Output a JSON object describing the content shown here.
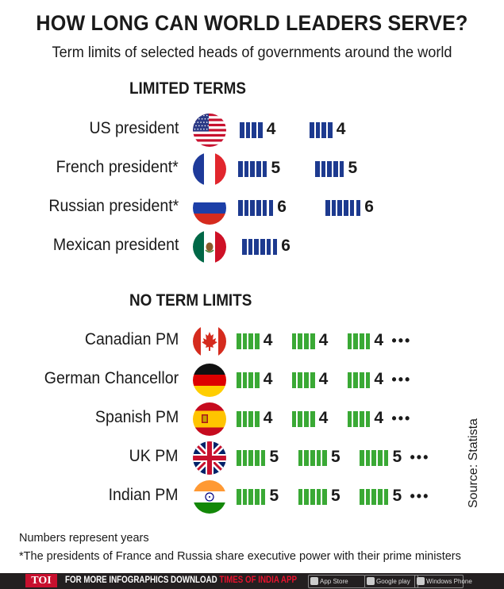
{
  "chart_data": {
    "type": "bar",
    "title": "HOW LONG CAN WORLD LEADERS SERVE?",
    "subtitle": "Term limits of selected heads of governments around the world",
    "groups": [
      {
        "name": "LIMITED TERMS",
        "color": "#1d3a8f",
        "rows": [
          {
            "label": "US president",
            "flag": "usa",
            "terms": [
              4,
              4
            ],
            "continues": false
          },
          {
            "label": "French president*",
            "flag": "france",
            "terms": [
              5,
              5
            ],
            "continues": false
          },
          {
            "label": "Russian president*",
            "flag": "russia",
            "terms": [
              6,
              6
            ],
            "continues": false
          },
          {
            "label": "Mexican president",
            "flag": "mexico",
            "terms": [
              6
            ],
            "continues": false
          }
        ]
      },
      {
        "name": "NO TERM LIMITS",
        "color": "#3aa935",
        "rows": [
          {
            "label": "Canadian PM",
            "flag": "canada",
            "terms": [
              4,
              4,
              4
            ],
            "continues": true
          },
          {
            "label": "German Chancellor",
            "flag": "germany",
            "terms": [
              4,
              4,
              4
            ],
            "continues": true
          },
          {
            "label": "Spanish PM",
            "flag": "spain",
            "terms": [
              4,
              4,
              4
            ],
            "continues": true
          },
          {
            "label": "UK PM",
            "flag": "uk",
            "terms": [
              5,
              5,
              5
            ],
            "continues": true
          },
          {
            "label": "Indian PM",
            "flag": "india",
            "terms": [
              5,
              5,
              5
            ],
            "continues": true
          }
        ]
      }
    ],
    "continuation_marker": "•••",
    "source": "Source: Statista"
  },
  "footnotes": [
    "Numbers represent years",
    "*The presidents of France and Russia share executive power with their prime ministers"
  ],
  "footer": {
    "logo": "TOI",
    "cta_prefix": "FOR MORE  INFOGRAPHICS DOWNLOAD ",
    "cta_app": "TIMES OF INDIA APP",
    "badges": [
      {
        "label": "App Store",
        "icon": "apple-icon"
      },
      {
        "label": "Google play",
        "icon": "google-play-icon"
      },
      {
        "label": "Windows Phone",
        "icon": "windows-icon"
      }
    ],
    "bg_color": "#231f20",
    "accent_color": "#e8112d"
  }
}
